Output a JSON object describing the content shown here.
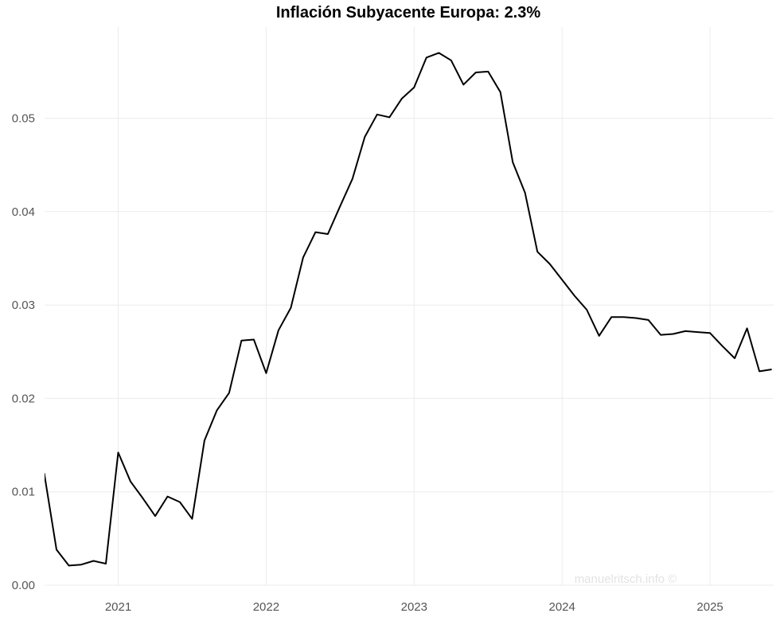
{
  "chart_data": {
    "type": "line",
    "title": "Inflación Subyacente Europa: 2.3%",
    "xlabel": "",
    "ylabel": "",
    "watermark": "manuelritsch.info ©",
    "x_ticks": [
      "2021",
      "2022",
      "2023",
      "2024",
      "2025"
    ],
    "y_ticks": [
      "0.00",
      "0.01",
      "0.02",
      "0.03",
      "0.04",
      "0.05"
    ],
    "ylim": [
      0,
      0.058
    ],
    "grid": true,
    "series": [
      {
        "color": "#000000",
        "points": [
          [
            "2020-07",
            0.012
          ],
          [
            "2020-08",
            0.0038
          ],
          [
            "2020-09",
            0.0021
          ],
          [
            "2020-10",
            0.0022
          ],
          [
            "2020-11",
            0.0026
          ],
          [
            "2020-12",
            0.0023
          ],
          [
            "2021-01",
            0.0142
          ],
          [
            "2021-02",
            0.0111
          ],
          [
            "2021-03",
            0.0093
          ],
          [
            "2021-04",
            0.0074
          ],
          [
            "2021-05",
            0.0095
          ],
          [
            "2021-06",
            0.0089
          ],
          [
            "2021-07",
            0.0071
          ],
          [
            "2021-08",
            0.0155
          ],
          [
            "2021-09",
            0.0187
          ],
          [
            "2021-10",
            0.0206
          ],
          [
            "2021-11",
            0.0262
          ],
          [
            "2021-12",
            0.0263
          ],
          [
            "2022-01",
            0.0227
          ],
          [
            "2022-02",
            0.0273
          ],
          [
            "2022-03",
            0.0297
          ],
          [
            "2022-04",
            0.0351
          ],
          [
            "2022-05",
            0.0378
          ],
          [
            "2022-06",
            0.0376
          ],
          [
            "2022-07",
            0.0406
          ],
          [
            "2022-08",
            0.0435
          ],
          [
            "2022-09",
            0.048
          ],
          [
            "2022-10",
            0.0504
          ],
          [
            "2022-11",
            0.0501
          ],
          [
            "2022-12",
            0.0521
          ],
          [
            "2023-01",
            0.0533
          ],
          [
            "2023-02",
            0.0565
          ],
          [
            "2023-03",
            0.057
          ],
          [
            "2023-04",
            0.0562
          ],
          [
            "2023-05",
            0.0536
          ],
          [
            "2023-06",
            0.0549
          ],
          [
            "2023-07",
            0.055
          ],
          [
            "2023-08",
            0.0528
          ],
          [
            "2023-09",
            0.0453
          ],
          [
            "2023-10",
            0.042
          ],
          [
            "2023-11",
            0.0357
          ],
          [
            "2023-12",
            0.0344
          ],
          [
            "2024-01",
            0.0327
          ],
          [
            "2024-02",
            0.031
          ],
          [
            "2024-03",
            0.0295
          ],
          [
            "2024-04",
            0.0267
          ],
          [
            "2024-05",
            0.0287
          ],
          [
            "2024-06",
            0.0287
          ],
          [
            "2024-07",
            0.0286
          ],
          [
            "2024-08",
            0.0284
          ],
          [
            "2024-09",
            0.0268
          ],
          [
            "2024-10",
            0.0269
          ],
          [
            "2024-11",
            0.0272
          ],
          [
            "2024-12",
            0.0271
          ],
          [
            "2025-01",
            0.027
          ],
          [
            "2025-02",
            0.0256
          ],
          [
            "2025-03",
            0.0243
          ],
          [
            "2025-04",
            0.0275
          ],
          [
            "2025-05",
            0.0229
          ],
          [
            "2025-06",
            0.0231
          ]
        ]
      }
    ]
  }
}
